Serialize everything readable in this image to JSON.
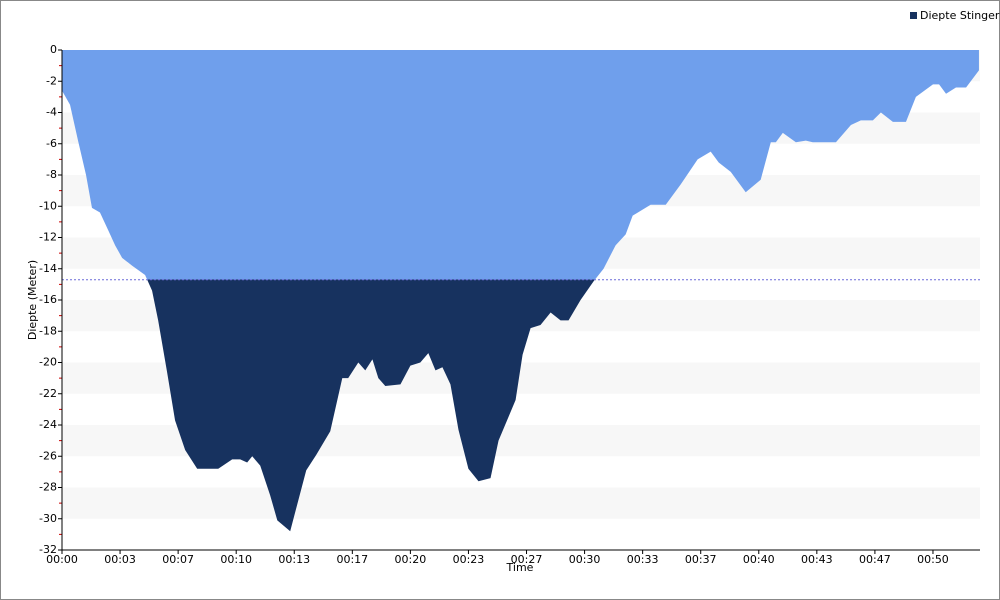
{
  "chart_data": {
    "type": "area",
    "legend_label": "Diepte Stinger",
    "legend_position": "top-right",
    "xlabel": "Time",
    "ylabel": "Diepte (Meter)",
    "x": [
      0,
      0.46,
      0.92,
      1.38,
      1.72,
      2.18,
      2.64,
      3.05,
      3.45,
      4.02,
      4.77,
      5.17,
      5.52,
      6.03,
      6.49,
      7.07,
      7.76,
      8.97,
      9.77,
      10.23,
      10.63,
      10.92,
      11.38,
      11.95,
      12.36,
      13.1,
      13.5,
      14.02,
      14.6,
      15.4,
      16.09,
      16.43,
      17.01,
      17.41,
      17.82,
      18.16,
      18.56,
      19.43,
      20.0,
      20.57,
      21.03,
      21.44,
      21.84,
      22.3,
      22.76,
      23.33,
      23.91,
      24.6,
      25.06,
      26.04,
      26.44,
      26.9,
      27.47,
      28.05,
      28.62,
      29.08,
      29.77,
      30.52,
      31.09,
      31.78,
      32.36,
      32.76,
      33.79,
      34.66,
      35.52,
      36.49,
      37.24,
      37.7,
      38.39,
      39.25,
      40.11,
      40.69,
      40.98,
      41.38,
      42.13,
      42.7,
      43.1,
      44.43,
      45.29,
      45.86,
      46.55,
      47.01,
      47.7,
      48.45,
      49.02,
      50.0,
      50.35,
      50.75,
      51.32,
      51.9,
      52.64
    ],
    "values": [
      -2.6,
      -3.5,
      -5.8,
      -8.0,
      -10.1,
      -10.4,
      -11.5,
      -12.5,
      -13.3,
      -13.8,
      -14.4,
      -15.4,
      -17.3,
      -20.6,
      -23.7,
      -25.6,
      -26.8,
      -26.8,
      -26.2,
      -26.2,
      -26.4,
      -26.0,
      -26.6,
      -28.5,
      -30.1,
      -30.8,
      -29.1,
      -26.9,
      -25.9,
      -24.4,
      -21.0,
      -21.0,
      -20.0,
      -20.5,
      -19.8,
      -21.0,
      -21.5,
      -21.4,
      -20.2,
      -20.0,
      -19.4,
      -20.5,
      -20.3,
      -21.4,
      -24.3,
      -26.8,
      -27.6,
      -27.4,
      -25.0,
      -22.4,
      -19.5,
      -17.8,
      -17.6,
      -16.8,
      -17.3,
      -17.3,
      -16.0,
      -14.8,
      -14.0,
      -12.5,
      -11.8,
      -10.6,
      -9.9,
      -9.9,
      -8.6,
      -7.0,
      -6.5,
      -7.2,
      -7.8,
      -9.1,
      -8.3,
      -5.9,
      -5.9,
      -5.3,
      -5.9,
      -5.8,
      -5.9,
      -5.9,
      -4.8,
      -4.5,
      -4.5,
      -4.0,
      -4.6,
      -4.6,
      -3.0,
      -2.2,
      -2.2,
      -2.8,
      -2.4,
      -2.4,
      -1.3
    ],
    "threshold": -14.7,
    "threshold_color": "#6a6ad8",
    "color_above": "#6f9fec",
    "color_below": "#17325f",
    "xlim": [
      0,
      52.7
    ],
    "xticks": [
      {
        "value": 0,
        "label": "00:00"
      },
      {
        "value": 3.333,
        "label": "00:03"
      },
      {
        "value": 6.667,
        "label": "00:07"
      },
      {
        "value": 10,
        "label": "00:10"
      },
      {
        "value": 13.333,
        "label": "00:13"
      },
      {
        "value": 16.667,
        "label": "00:17"
      },
      {
        "value": 20,
        "label": "00:20"
      },
      {
        "value": 23.333,
        "label": "00:23"
      },
      {
        "value": 26.667,
        "label": "00:27"
      },
      {
        "value": 30,
        "label": "00:30"
      },
      {
        "value": 33.333,
        "label": "00:33"
      },
      {
        "value": 36.667,
        "label": "00:37"
      },
      {
        "value": 40,
        "label": "00:40"
      },
      {
        "value": 43.333,
        "label": "00:43"
      },
      {
        "value": 46.667,
        "label": "00:47"
      },
      {
        "value": 50,
        "label": "00:50"
      }
    ],
    "ylim": [
      -32,
      0
    ],
    "yticks": [
      0,
      -2,
      -4,
      -6,
      -8,
      -10,
      -12,
      -14,
      -16,
      -18,
      -20,
      -22,
      -24,
      -26,
      -28,
      -30,
      -32
    ],
    "grid": "bands"
  }
}
